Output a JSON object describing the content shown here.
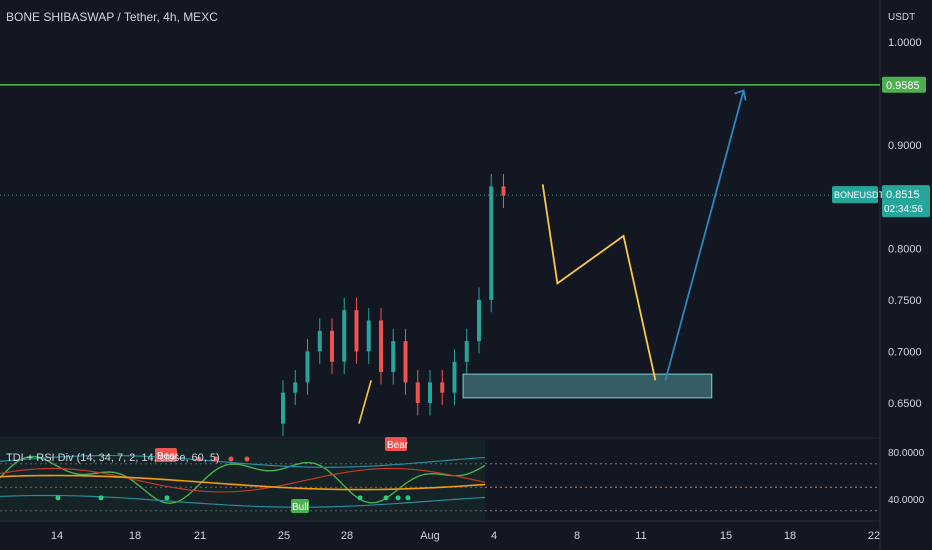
{
  "header": {
    "title": "BONE SHIBASWAP / Tether, 4h, MEXC",
    "currency": "USDT"
  },
  "indicator": {
    "title": "TDI + RSI Div (14, 34, 7, 2, 14, close, 60, 5)",
    "bear_label": "Bear",
    "bull_label": "Bull"
  },
  "price_axis": {
    "ticks": [
      "1.0000",
      "0.9000",
      "0.8000",
      "0.7500",
      "0.7000",
      "0.6500"
    ],
    "tick_values": [
      1.0,
      0.9,
      0.8,
      0.75,
      0.7,
      0.65
    ],
    "resistance_label": "0.9585",
    "symbol_tag": "BONEUSDT",
    "last_price": "0.8515",
    "countdown": "02:34:56"
  },
  "indicator_axis": {
    "ticks": [
      "80.0000",
      "40.0000"
    ]
  },
  "time_axis": {
    "labels": [
      "14",
      "18",
      "21",
      "25",
      "28",
      "Aug",
      "4",
      "8",
      "11",
      "15",
      "18",
      "22"
    ]
  },
  "colors": {
    "background": "#131722",
    "resistance_line": "#4caf50",
    "up_candle": "#26a69a",
    "down_candle": "#ef5350",
    "projection_yellow": "#f7c948",
    "projection_arrow": "#2e86c1",
    "demand_zone": "#5fb3b3",
    "last_price_tag": "#26a69a"
  },
  "chart_data": {
    "type": "line",
    "title": "BONE SHIBASWAP / Tether, 4h, MEXC",
    "ylabel": "USDT",
    "ylim": [
      0.615,
      1.025
    ],
    "resistance_level": 0.9585,
    "last_price": 0.8515,
    "demand_zone": {
      "from_date": "Aug 2",
      "to_date": "Aug 14",
      "low": 0.655,
      "high": 0.678
    },
    "projection_path": [
      {
        "t": 4.6,
        "price": 0.862
      },
      {
        "t": 5.2,
        "price": 0.766
      },
      {
        "t": 7.9,
        "price": 0.812
      },
      {
        "t": 9.2,
        "price": 0.672
      },
      {
        "t": 12.8,
        "price": 0.953
      }
    ],
    "series": [
      {
        "values": [
          [
            -6,
            0.63,
            0.66
          ],
          [
            -5.5,
            0.66,
            0.67
          ],
          [
            -5,
            0.67,
            0.7
          ],
          [
            -4.5,
            0.7,
            0.72
          ],
          [
            -4,
            0.72,
            0.69
          ],
          [
            -3.5,
            0.69,
            0.74
          ],
          [
            -3,
            0.74,
            0.7
          ],
          [
            -2.5,
            0.7,
            0.73
          ],
          [
            -2,
            0.73,
            0.68
          ],
          [
            -1.5,
            0.68,
            0.71
          ],
          [
            -1,
            0.71,
            0.67
          ],
          [
            -0.5,
            0.67,
            0.65
          ],
          [
            0,
            0.65,
            0.67
          ],
          [
            0.5,
            0.67,
            0.66
          ],
          [
            1,
            0.66,
            0.69
          ],
          [
            1.5,
            0.69,
            0.71
          ],
          [
            2,
            0.71,
            0.75
          ],
          [
            2.5,
            0.75,
            0.86
          ],
          [
            3,
            0.86,
            0.851
          ]
        ]
      }
    ]
  }
}
